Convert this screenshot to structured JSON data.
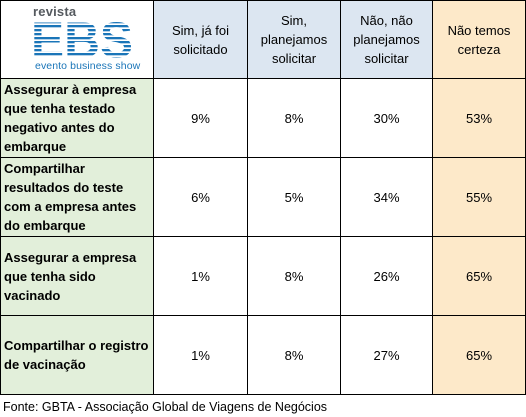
{
  "logo": {
    "top_text": "revista",
    "letters": "EBS",
    "bottom_text": "evento business show",
    "brand_color": "#1a75b8"
  },
  "chart_data": {
    "type": "table",
    "columns": [
      "Sim, já foi solicitado",
      "Sim, planejamos solicitar",
      "Não, não planejamos solicitar",
      "Não temos certeza"
    ],
    "rows": [
      {
        "label": "Assegurar à empresa que tenha testado negativo antes do embarque",
        "values": [
          "9%",
          "8%",
          "30%",
          "53%"
        ]
      },
      {
        "label": "Compartilhar resultados do teste com a empresa antes do embarque",
        "values": [
          "6%",
          "5%",
          "34%",
          "55%"
        ]
      },
      {
        "label": "Assegurar a empresa que tenha sido vacinado",
        "values": [
          "1%",
          "8%",
          "26%",
          "65%"
        ]
      },
      {
        "label": "Compartilhar o registro de vacinação",
        "values": [
          "1%",
          "8%",
          "27%",
          "65%"
        ]
      }
    ],
    "highlight_column": 3,
    "colors": {
      "header_fill": "#dce6f1",
      "row_label_fill": "#e2efda",
      "highlight_fill": "#fde9c9",
      "border": "#000000"
    }
  },
  "source": "Fonte: GBTA - Associação Global de Viagens de Negócios"
}
